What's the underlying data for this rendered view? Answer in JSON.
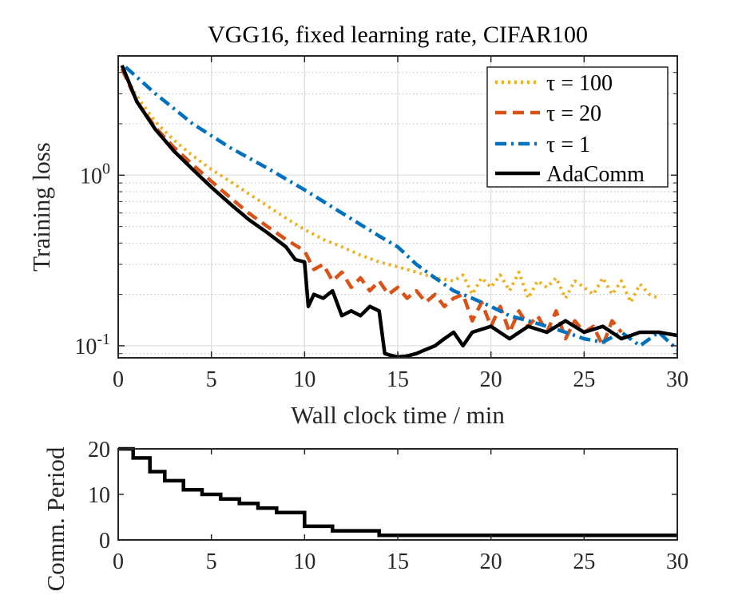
{
  "chart_data": [
    {
      "type": "line",
      "title": "VGG16, fixed learning rate, CIFAR100",
      "xlabel": "Wall clock time / min",
      "ylabel": "Training loss",
      "xlim": [
        0,
        30
      ],
      "ylim": [
        0.085,
        5.0
      ],
      "yscale": "log",
      "grid": true,
      "xticks": [
        "0",
        "5",
        "10",
        "15",
        "20",
        "25",
        "30"
      ],
      "yticks": [
        {
          "base": "10",
          "exp": "0"
        },
        {
          "base": "10",
          "exp": "-1"
        }
      ],
      "legend": "top-right",
      "series": [
        {
          "name": "τ = 100",
          "color": "#EDB120",
          "style": "dotted",
          "x": [
            0.2,
            1,
            2,
            3,
            4,
            5,
            6,
            7,
            8,
            9,
            10,
            11,
            12,
            13,
            14,
            15,
            16,
            17,
            18,
            18.5,
            19,
            19.5,
            20,
            20.5,
            21,
            21.5,
            22,
            22.5,
            23,
            23.5,
            24,
            24.5,
            25,
            25.5,
            26,
            26.5,
            27,
            27.5,
            28,
            28.5,
            29
          ],
          "y": [
            4.2,
            2.9,
            2.05,
            1.6,
            1.3,
            1.08,
            0.92,
            0.78,
            0.66,
            0.56,
            0.48,
            0.42,
            0.38,
            0.34,
            0.31,
            0.29,
            0.27,
            0.25,
            0.24,
            0.26,
            0.2,
            0.25,
            0.22,
            0.26,
            0.21,
            0.27,
            0.19,
            0.24,
            0.22,
            0.25,
            0.19,
            0.24,
            0.22,
            0.2,
            0.25,
            0.2,
            0.24,
            0.18,
            0.23,
            0.2,
            0.19
          ]
        },
        {
          "name": "τ = 20",
          "color": "#D95319",
          "style": "dashed",
          "x": [
            0.2,
            1,
            2,
            3,
            4,
            5,
            6,
            7,
            8,
            9,
            10,
            10.5,
            11,
            11.5,
            12,
            12.5,
            13,
            13.5,
            14,
            14.5,
            15,
            15.5,
            16,
            16.5,
            17,
            17.5,
            18,
            18.5,
            19,
            19.5,
            20,
            20.5,
            21,
            21.5,
            22,
            22.5,
            23,
            23.5,
            24,
            24.5,
            25,
            25.5,
            26,
            26.5,
            27
          ],
          "y": [
            4.2,
            2.7,
            1.9,
            1.45,
            1.15,
            0.92,
            0.74,
            0.6,
            0.5,
            0.42,
            0.36,
            0.28,
            0.3,
            0.24,
            0.27,
            0.22,
            0.25,
            0.21,
            0.24,
            0.2,
            0.22,
            0.19,
            0.21,
            0.18,
            0.2,
            0.17,
            0.19,
            0.2,
            0.14,
            0.18,
            0.13,
            0.17,
            0.12,
            0.16,
            0.13,
            0.15,
            0.12,
            0.16,
            0.11,
            0.14,
            0.12,
            0.13,
            0.1,
            0.14,
            0.12
          ]
        },
        {
          "name": "τ = 1",
          "color": "#0072BD",
          "style": "dashdot",
          "x": [
            0.4,
            2,
            4,
            6,
            8,
            10,
            12,
            14,
            15,
            16,
            17,
            18,
            19,
            20,
            21,
            22,
            23,
            24,
            25,
            26,
            27,
            28,
            29,
            30
          ],
          "y": [
            4.3,
            3.0,
            2.0,
            1.45,
            1.1,
            0.82,
            0.6,
            0.44,
            0.38,
            0.3,
            0.25,
            0.21,
            0.19,
            0.17,
            0.15,
            0.14,
            0.13,
            0.12,
            0.11,
            0.105,
            0.12,
            0.1,
            0.12,
            0.095
          ]
        },
        {
          "name": "AdaComm",
          "color": "#000000",
          "style": "solid",
          "x": [
            0.2,
            1,
            2,
            3,
            4,
            5,
            6,
            7,
            8,
            9,
            9.5,
            10,
            10.2,
            10.5,
            11,
            11.5,
            12,
            12.5,
            13,
            13.5,
            14,
            14.3,
            14.6,
            15,
            15.5,
            16,
            16.5,
            17,
            17.5,
            18,
            18.5,
            19,
            20,
            21,
            22,
            23,
            24,
            25,
            26,
            27,
            28,
            29,
            30
          ],
          "y": [
            4.4,
            2.7,
            1.85,
            1.38,
            1.08,
            0.85,
            0.68,
            0.55,
            0.46,
            0.38,
            0.32,
            0.31,
            0.17,
            0.2,
            0.19,
            0.21,
            0.15,
            0.16,
            0.15,
            0.17,
            0.16,
            0.09,
            0.088,
            0.086,
            0.087,
            0.09,
            0.095,
            0.1,
            0.11,
            0.12,
            0.1,
            0.12,
            0.13,
            0.11,
            0.13,
            0.12,
            0.14,
            0.12,
            0.13,
            0.11,
            0.12,
            0.12,
            0.115
          ]
        }
      ]
    },
    {
      "type": "line",
      "title": "",
      "xlabel": "",
      "ylabel": "Comm. Period",
      "xlim": [
        0,
        30
      ],
      "ylim": [
        0,
        20
      ],
      "grid": false,
      "xticks": [
        "0",
        "5",
        "10",
        "15",
        "20",
        "25",
        "30"
      ],
      "yticks": [
        "0",
        "10",
        "20"
      ],
      "series": [
        {
          "name": "AdaComm",
          "color": "#000000",
          "style": "step",
          "x": [
            0,
            0.8,
            1.7,
            2.5,
            3.5,
            4.5,
            5.5,
            6.5,
            7.5,
            8.5,
            10,
            11.5,
            14,
            30
          ],
          "y": [
            20,
            18,
            15,
            13,
            11,
            10,
            9,
            8,
            7,
            6,
            3,
            2,
            1,
            1
          ]
        }
      ]
    }
  ]
}
